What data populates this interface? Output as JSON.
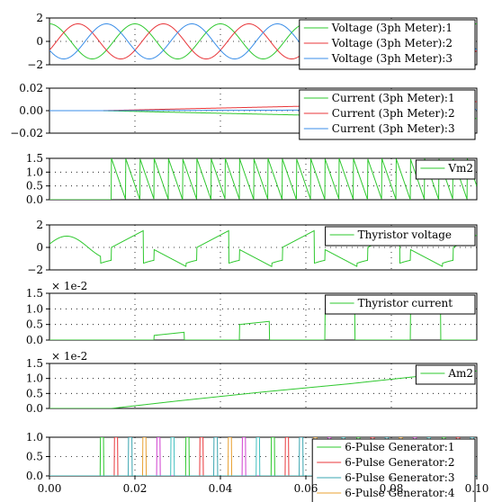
{
  "chart_data": [
    {
      "type": "line",
      "xlim": [
        0,
        0.1
      ],
      "ylim": [
        -2,
        2
      ],
      "yticks": [
        -2,
        0,
        2
      ],
      "ytick_labels": [
        "−2",
        "0",
        "2"
      ],
      "scale_note": "",
      "legend_position": "top-right",
      "series": [
        {
          "name": "Voltage (3ph Meter):1",
          "color": "#2ec82e",
          "shape": "sine",
          "amplitude": 1.5,
          "frequency": 50,
          "phase_deg": 90
        },
        {
          "name": "Voltage (3ph Meter):2",
          "color": "#e8363a",
          "shape": "sine",
          "amplitude": 1.5,
          "frequency": 50,
          "phase_deg": -30
        },
        {
          "name": "Voltage (3ph Meter):3",
          "color": "#3a8ee8",
          "shape": "sine",
          "amplitude": 1.5,
          "frequency": 50,
          "phase_deg": 210
        }
      ]
    },
    {
      "type": "line",
      "xlim": [
        0,
        0.1
      ],
      "ylim": [
        -0.02,
        0.02
      ],
      "yticks": [
        -0.02,
        0,
        0.02
      ],
      "ytick_labels": [
        "−0.02",
        "0.00",
        "0.02"
      ],
      "scale_note": "",
      "legend_position": "top-right",
      "series": [
        {
          "name": "Current (3ph Meter):1",
          "color": "#2ec82e",
          "x": [
            0,
            0.012,
            0.06,
            0.1
          ],
          "y": [
            0,
            0,
            -0.004,
            -0.007
          ]
        },
        {
          "name": "Current (3ph Meter):2",
          "color": "#e8363a",
          "x": [
            0,
            0.012,
            0.06,
            0.1
          ],
          "y": [
            0,
            0,
            0.004,
            0.008
          ]
        },
        {
          "name": "Current (3ph Meter):3",
          "color": "#3a8ee8",
          "x": [
            0,
            0.012,
            0.06,
            0.1
          ],
          "y": [
            0,
            0,
            0.0005,
            0.001
          ]
        }
      ]
    },
    {
      "type": "line",
      "xlim": [
        0,
        0.1
      ],
      "ylim": [
        0,
        1.5
      ],
      "yticks": [
        0,
        0.5,
        1.0,
        1.5
      ],
      "ytick_labels": [
        "0.0",
        "0.5",
        "1.0",
        "1.5"
      ],
      "scale_note": "",
      "legend_position": "top-right",
      "series": [
        {
          "name": "Vm2",
          "color": "#2ec82e",
          "shape": "sawtooth",
          "start": 0.0145,
          "period": 0.00333,
          "peak": 1.5
        }
      ]
    },
    {
      "type": "line",
      "xlim": [
        0,
        0.1
      ],
      "ylim": [
        -2,
        2
      ],
      "yticks": [
        -2,
        0,
        2
      ],
      "ytick_labels": [
        "−2",
        "0",
        "2"
      ],
      "scale_note": "",
      "legend_position": "top-right",
      "series": [
        {
          "name": "Thyristor voltage",
          "color": "#2ec82e",
          "shape": "thyristor_voltage"
        }
      ]
    },
    {
      "type": "line",
      "xlim": [
        0,
        0.1
      ],
      "ylim": [
        0,
        1.5
      ],
      "yticks": [
        0,
        0.5,
        1.0,
        1.5
      ],
      "ytick_labels": [
        "0.0",
        "0.5",
        "1.0",
        "1.5"
      ],
      "scale_note": "× 1e-2",
      "legend_position": "top-right",
      "series": [
        {
          "name": "Thyristor current",
          "color": "#2ec82e",
          "pulses": [
            [
              0.0245,
              0.0315,
              0.15,
              0.25
            ],
            [
              0.0445,
              0.0515,
              0.5,
              0.6
            ],
            [
              0.0645,
              0.0715,
              0.85,
              0.95
            ],
            [
              0.0845,
              0.0915,
              1.05,
              1.15
            ]
          ]
        }
      ]
    },
    {
      "type": "line",
      "xlim": [
        0,
        0.1
      ],
      "ylim": [
        0,
        1.5
      ],
      "yticks": [
        0,
        0.5,
        1.0,
        1.5
      ],
      "ytick_labels": [
        "0.0",
        "0.5",
        "1.0",
        "1.5"
      ],
      "scale_note": "× 1e-2",
      "legend_position": "top-right",
      "series": [
        {
          "name": "Am2",
          "color": "#2ec82e",
          "x": [
            0,
            0.0145,
            0.03,
            0.05,
            0.07,
            0.085,
            0.1
          ],
          "y": [
            0,
            0,
            0.25,
            0.55,
            0.82,
            1.05,
            1.25
          ]
        }
      ]
    },
    {
      "type": "line",
      "xlim": [
        0,
        0.1
      ],
      "ylim": [
        0,
        1.0
      ],
      "yticks": [
        0,
        0.5,
        1.0
      ],
      "ytick_labels": [
        "0.0",
        "0.5",
        "1.0"
      ],
      "scale_note": "",
      "legend_position": "top-right",
      "xticks": [
        0,
        0.02,
        0.04,
        0.06,
        0.08,
        0.1
      ],
      "xtick_labels": [
        "0.00",
        "0.02",
        "0.04",
        "0.06",
        "0.08",
        "0.10"
      ],
      "series": [
        {
          "name": "6-Pulse Generator:1",
          "color": "#2ec82e",
          "pulse_start": 0.0119
        },
        {
          "name": "6-Pulse Generator:2",
          "color": "#e8363a",
          "pulse_start": 0.0152
        },
        {
          "name": "6-Pulse Generator:3",
          "color": "#3aa5b0",
          "pulse_start": 0.0185
        },
        {
          "name": "6-Pulse Generator:4",
          "color": "#e8a030",
          "pulse_start": 0.0218
        },
        {
          "name": "",
          "color": "#d040d0",
          "pulse_start": 0.0251
        },
        {
          "name": "",
          "color": "#40c0c0",
          "pulse_start": 0.0284
        }
      ],
      "pulse_width": 0.0008,
      "pulse_period": 0.02
    }
  ]
}
